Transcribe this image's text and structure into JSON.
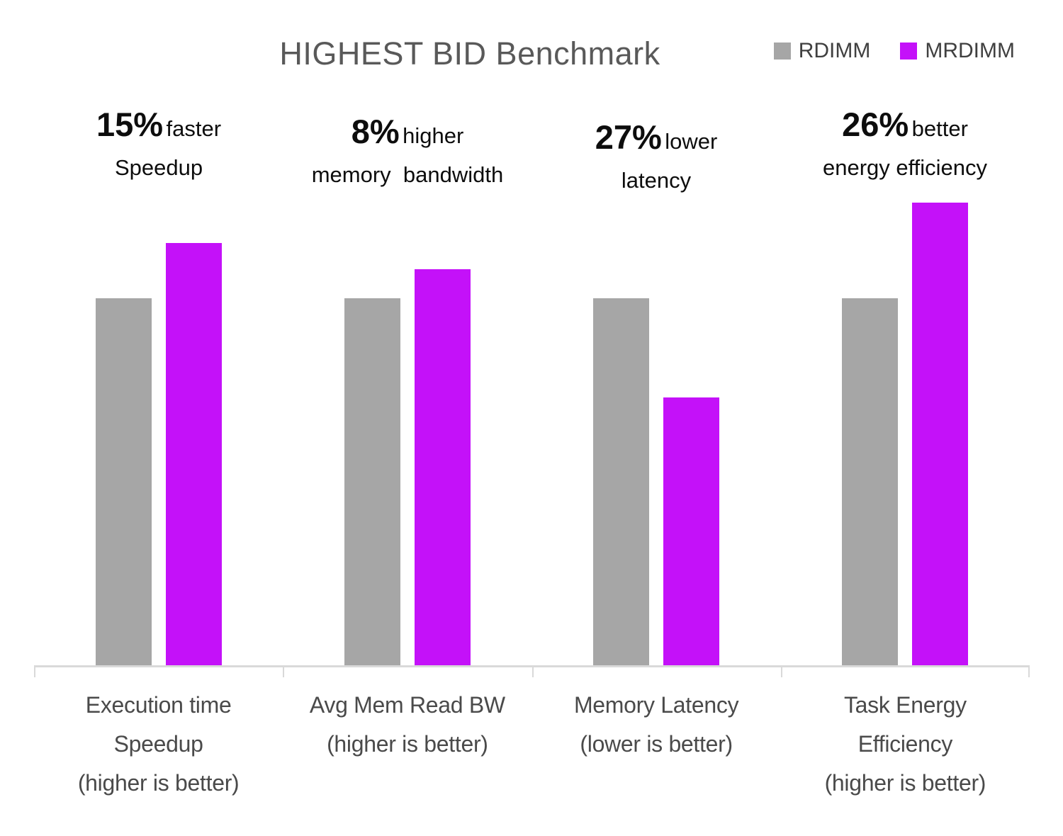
{
  "chart_data": {
    "type": "bar",
    "title": "HIGHEST BID Benchmark",
    "categories": [
      "Execution time\nSpeedup\n(higher is better)",
      "Avg Mem Read BW\n(higher is better)",
      "Memory Latency\n(lower is better)",
      "Task Energy\nEfficiency\n(higher is better)"
    ],
    "series": [
      {
        "name": "RDIMM",
        "color": "#A6A6A6",
        "values": [
          1.0,
          1.0,
          1.0,
          1.0
        ]
      },
      {
        "name": "MRDIMM",
        "color": "#C411F9",
        "values": [
          1.15,
          1.08,
          0.73,
          1.26
        ]
      }
    ],
    "annotations": [
      {
        "pct": "15%",
        "suffix": "faster",
        "line2": "Speedup"
      },
      {
        "pct": "8%",
        "suffix": "higher",
        "line2": "memory  bandwidth"
      },
      {
        "pct": "27%",
        "suffix": "lower",
        "line2": "latency"
      },
      {
        "pct": "26%",
        "suffix": "better",
        "line2": "energy efficiency"
      }
    ],
    "values_unit": "relative to RDIMM = 1.0",
    "ylim": [
      0,
      1.31
    ],
    "grid": false,
    "y_axis_visible": false,
    "legend_position": "top-right",
    "axis_color": "#d9d9d9",
    "title_color": "#595959",
    "label_color": "#4a4a4a"
  }
}
